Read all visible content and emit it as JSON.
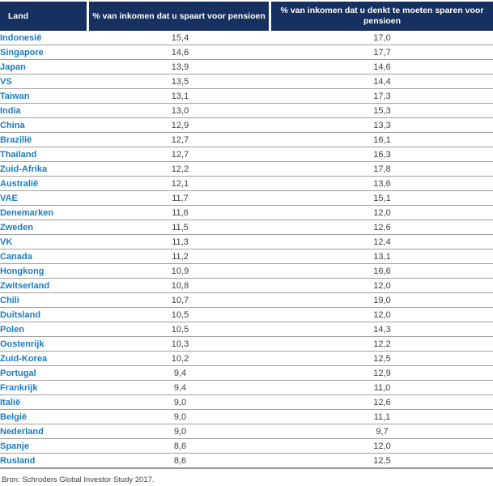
{
  "chart_data": {
    "type": "table",
    "columns": [
      "Land",
      "% van inkomen dat u spaart voor pensioen",
      "% van inkomen dat u denkt te moeten sparen voor pensioen"
    ],
    "rows": [
      [
        "Indonesië",
        "15,4",
        "17,0"
      ],
      [
        "Singapore",
        "14,6",
        "17,7"
      ],
      [
        "Japan",
        "13,9",
        "14,6"
      ],
      [
        "VS",
        "13,5",
        "14,4"
      ],
      [
        "Taiwan",
        "13,1",
        "17,3"
      ],
      [
        "India",
        "13,0",
        "15,3"
      ],
      [
        "China",
        "12,9",
        "13,3"
      ],
      [
        "Brazilië",
        "12,7",
        "16,1"
      ],
      [
        "Thailand",
        "12,7",
        "16,3"
      ],
      [
        "Zuid-Afrika",
        "12,2",
        "17,8"
      ],
      [
        "Australië",
        "12,1",
        "13,6"
      ],
      [
        "VAE",
        "11,7",
        "15,1"
      ],
      [
        "Denemarken",
        "11,6",
        "12,0"
      ],
      [
        "Zweden",
        "11,5",
        "12,6"
      ],
      [
        "VK",
        "11,3",
        "12,4"
      ],
      [
        "Canada",
        "11,2",
        "13,1"
      ],
      [
        "Hongkong",
        "10,9",
        "16,6"
      ],
      [
        "Zwitserland",
        "10,8",
        "12,0"
      ],
      [
        "Chili",
        "10,7",
        "19,0"
      ],
      [
        "Duitsland",
        "10,5",
        "12,0"
      ],
      [
        "Polen",
        "10,5",
        "14,3"
      ],
      [
        "Oostenrijk",
        "10,3",
        "12,2"
      ],
      [
        "Zuid-Korea",
        "10,2",
        "12,5"
      ],
      [
        "Portugal",
        "9,4",
        "12,9"
      ],
      [
        "Frankrijk",
        "9,4",
        "11,0"
      ],
      [
        "Italië",
        "9,0",
        "12,6"
      ],
      [
        "België",
        "9,0",
        "11,1"
      ],
      [
        "Nederland",
        "9,0",
        "9,7"
      ],
      [
        "Spanje",
        "8,6",
        "12,0"
      ],
      [
        "Rusland",
        "8,6",
        "12,5"
      ]
    ],
    "source_note": "Bron: Schroders Global Investor Study 2017."
  },
  "colors": {
    "header_bg": "#16305f",
    "header_text": "#ffffff",
    "country_text": "#1b7cc0",
    "value_text": "#3c414b",
    "row_border": "#a0a0a0"
  }
}
